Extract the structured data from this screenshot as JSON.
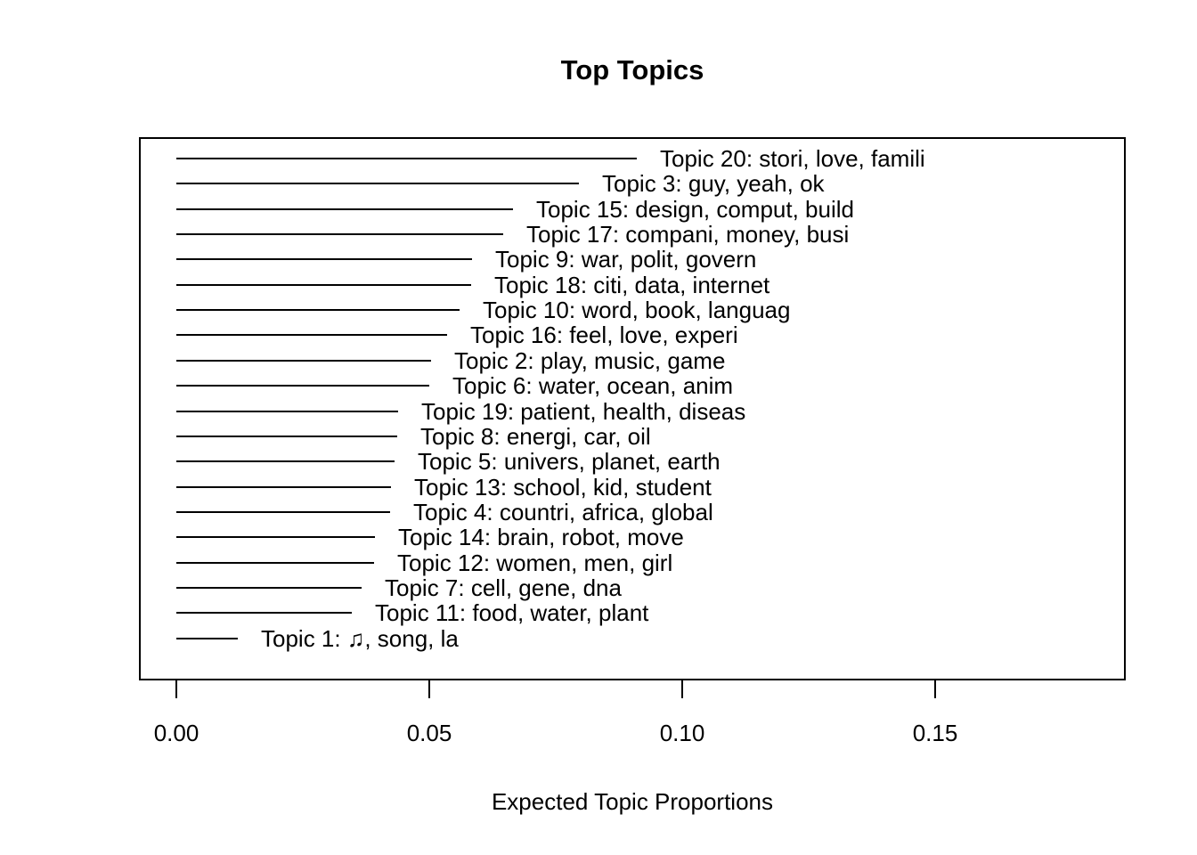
{
  "chart_data": {
    "type": "bar",
    "subtype": "horizontal-line-segments",
    "title": "Top Topics",
    "xlabel": "Expected Topic Proportions",
    "ylabel": "",
    "xlim": [
      0,
      0.187
    ],
    "x_ticks": [
      "0.00",
      "0.05",
      "0.10",
      "0.15"
    ],
    "x_tick_values": [
      0,
      0.05,
      0.1,
      0.15
    ],
    "grid": false,
    "legend": "none",
    "line_color": "#000000",
    "topics": [
      {
        "label": "Topic 20: stori, love, famili",
        "value": 0.091
      },
      {
        "label": "Topic 3: guy, yeah, ok",
        "value": 0.0796
      },
      {
        "label": "Topic 15: design, comput, build",
        "value": 0.0666
      },
      {
        "label": "Topic 17: compani, money, busi",
        "value": 0.0647
      },
      {
        "label": "Topic 9: war, polit, govern",
        "value": 0.0585
      },
      {
        "label": "Topic 18: citi, data, internet",
        "value": 0.0582
      },
      {
        "label": "Topic 10: word, book, languag",
        "value": 0.056
      },
      {
        "label": "Topic 16: feel, love, experi",
        "value": 0.0536
      },
      {
        "label": "Topic 2: play, music, game",
        "value": 0.0504
      },
      {
        "label": "Topic 6: water, ocean, anim",
        "value": 0.05
      },
      {
        "label": "Topic 19: patient, health, diseas",
        "value": 0.0438
      },
      {
        "label": "Topic 8: energi, car, oil",
        "value": 0.0436
      },
      {
        "label": "Topic 5: univers, planet, earth",
        "value": 0.0432
      },
      {
        "label": "Topic 13: school, kid, student",
        "value": 0.0425
      },
      {
        "label": "Topic 4: countri, africa, global",
        "value": 0.0423
      },
      {
        "label": "Topic 14: brain, robot, move",
        "value": 0.0392
      },
      {
        "label": "Topic 12: women, men, girl",
        "value": 0.0391
      },
      {
        "label": "Topic 7: cell, gene, dna",
        "value": 0.0367
      },
      {
        "label": "Topic 11: food, water, plant",
        "value": 0.0346
      },
      {
        "label": "Topic 1: ♫, song, la",
        "value": 0.0121
      }
    ]
  }
}
